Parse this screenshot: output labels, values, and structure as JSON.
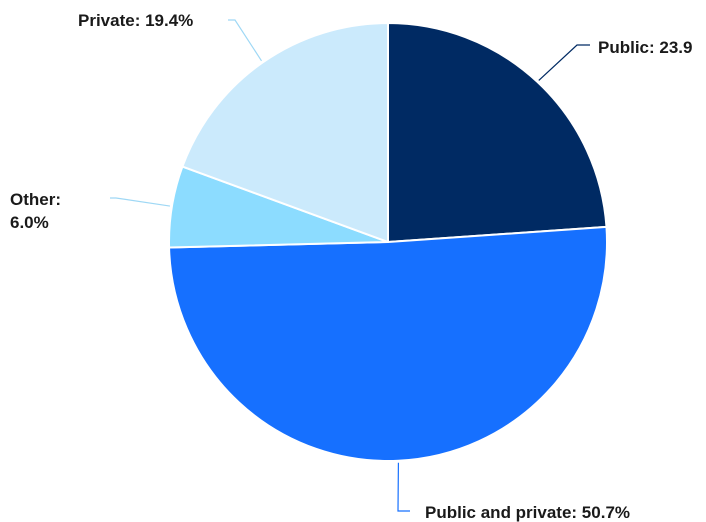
{
  "chart_data": {
    "type": "pie",
    "title": "",
    "slices": [
      {
        "name": "Public",
        "value": 23.9,
        "label": "Public: 23.9",
        "color": "#002a63"
      },
      {
        "name": "Public and private",
        "value": 50.7,
        "label": "Public and private: 50.7%",
        "color": "#1670ff"
      },
      {
        "name": "Other",
        "value": 6.0,
        "label_lines": [
          "Other:",
          "6.0%"
        ],
        "color": "#8cdcff"
      },
      {
        "name": "Private",
        "value": 19.4,
        "label": "Private: 19.4%",
        "color": "#cbeafc"
      }
    ]
  }
}
